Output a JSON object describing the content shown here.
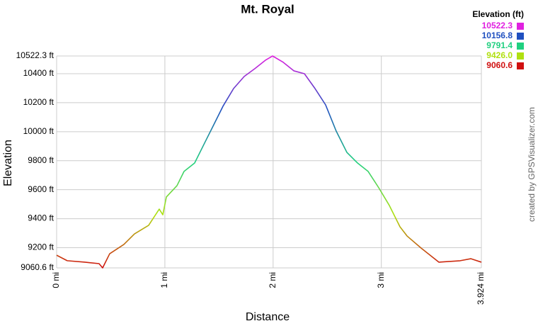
{
  "chart_data": {
    "type": "line",
    "title": "Mt. Royal",
    "x_label": "Distance",
    "y_label": "Elevation",
    "credit": "created by GPSVisualizer.com",
    "legend_title": "Elevation (ft)",
    "legend": [
      {
        "value": 10522.3,
        "label": "10522.3",
        "color": "#e020e0"
      },
      {
        "value": 10156.8,
        "label": "10156.8",
        "color": "#2050c0"
      },
      {
        "value": 9791.4,
        "label": "9791.4",
        "color": "#20d080"
      },
      {
        "value": 9426,
        "label": "9426.0",
        "color": "#b0e010"
      },
      {
        "value": 9060.6,
        "label": "9060.6",
        "color": "#d01010"
      }
    ],
    "x": [
      0,
      0.098,
      0.262,
      0.392,
      0.425,
      0.49,
      0.621,
      0.719,
      0.85,
      0.948,
      0.981,
      1.014,
      1.112,
      1.177,
      1.275,
      1.373,
      1.439,
      1.537,
      1.635,
      1.733,
      1.831,
      1.929,
      1.995,
      2.093,
      2.191,
      2.289,
      2.387,
      2.485,
      2.583,
      2.681,
      2.78,
      2.878,
      2.976,
      3.074,
      3.172,
      3.237,
      3.368,
      3.532,
      3.728,
      3.826,
      3.924
    ],
    "values": [
      9148,
      9110,
      9100,
      9090,
      9060.6,
      9158,
      9222,
      9295,
      9354,
      9466,
      9427,
      9550,
      9628,
      9726,
      9784,
      9931,
      10029,
      10176,
      10298,
      10381,
      10435,
      10493,
      10522.3,
      10479,
      10420,
      10400,
      10298,
      10185,
      10004,
      9858,
      9784,
      9726,
      9613,
      9491,
      9344,
      9281,
      9197,
      9100,
      9110,
      9124,
      9100
    ],
    "xlim": [
      0,
      3.924
    ],
    "ylim": [
      9060.6,
      10522.3
    ],
    "xticks": [
      {
        "value": 0,
        "label": "0 mi"
      },
      {
        "value": 1,
        "label": "1 mi"
      },
      {
        "value": 2,
        "label": "2 mi"
      },
      {
        "value": 3,
        "label": "3 mi"
      },
      {
        "value": 3.924,
        "label": "3.924 mi"
      }
    ],
    "yticks": [
      {
        "value": 9060.6,
        "label": "9060.6 ft"
      },
      {
        "value": 9200,
        "label": "9200 ft"
      },
      {
        "value": 9400,
        "label": "9400 ft"
      },
      {
        "value": 9600,
        "label": "9600 ft"
      },
      {
        "value": 9800,
        "label": "9800 ft"
      },
      {
        "value": 10000,
        "label": "10000 ft"
      },
      {
        "value": 10200,
        "label": "10200 ft"
      },
      {
        "value": 10400,
        "label": "10400 ft"
      },
      {
        "value": 10522.3,
        "label": "10522.3 ft"
      }
    ],
    "grid": true
  }
}
